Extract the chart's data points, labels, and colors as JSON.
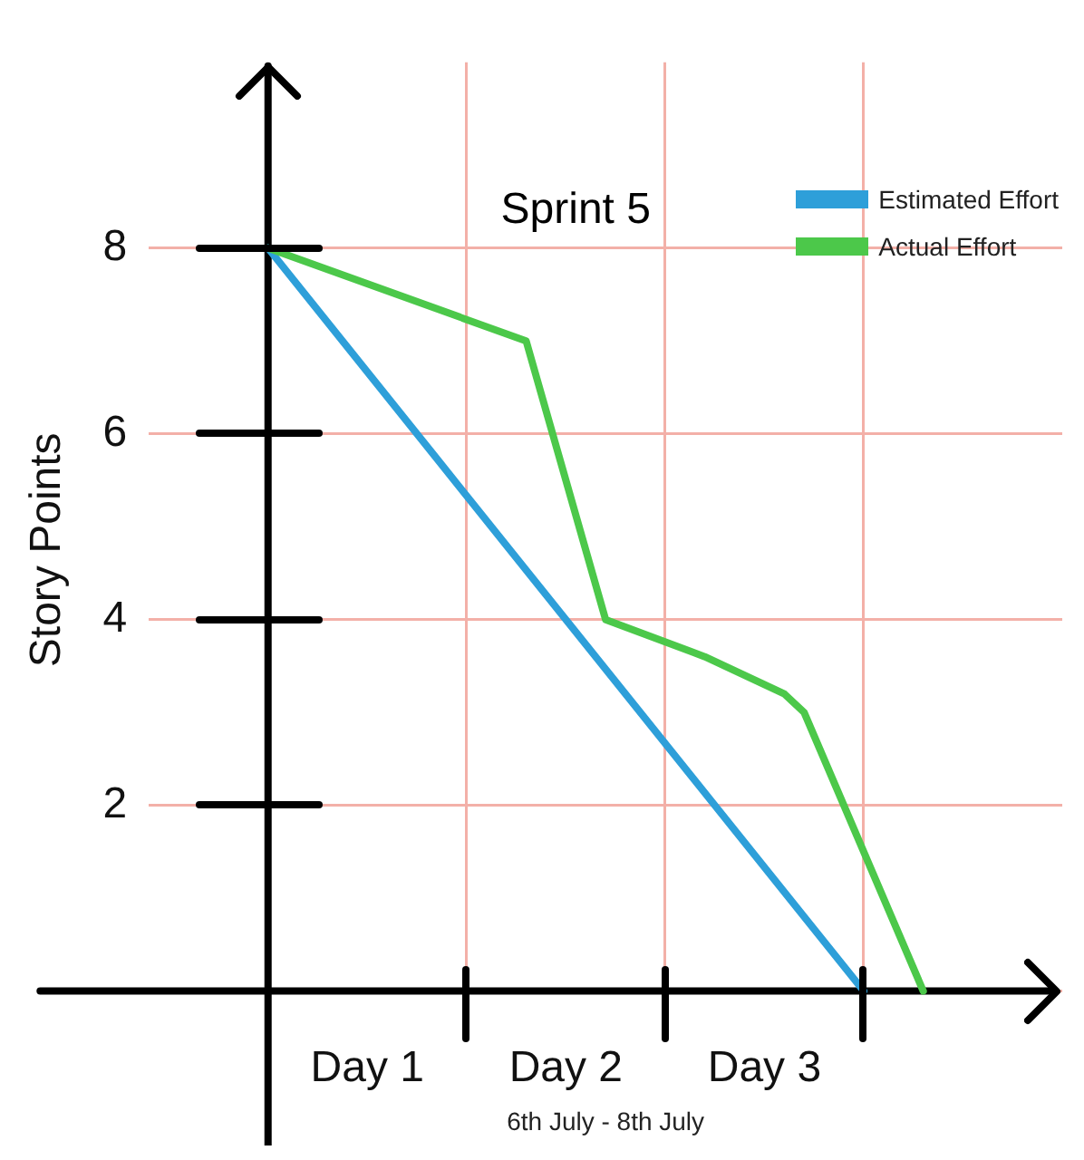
{
  "chart_data": {
    "type": "line",
    "title": "Sprint 5",
    "xlabel": "6th July - 8th July",
    "ylabel": "Story Points",
    "categories": [
      null,
      null,
      null,
      null,
      null,
      "Day 1",
      null,
      null,
      null,
      null,
      null,
      null,
      null,
      null,
      null,
      "Day 2",
      null,
      null,
      null,
      null,
      null,
      null,
      null,
      null,
      null,
      "Day 3",
      null,
      null,
      null,
      null,
      null,
      null,
      null,
      null
    ],
    "ylim": [
      -0.5,
      10
    ],
    "yticks": [
      {
        "value": 0,
        "label": null
      },
      2,
      4,
      6,
      8
    ],
    "grid": true,
    "legend": "top right",
    "marker": "none",
    "line_style": "solid",
    "series": [
      {
        "name": "Estimated Effort",
        "color": "#2e9fd9",
        "values": [
          8,
          null,
          null,
          null,
          null,
          null,
          null,
          null,
          null,
          null,
          null,
          null,
          null,
          null,
          null,
          null,
          null,
          null,
          null,
          null,
          null,
          null,
          null,
          null,
          null,
          null,
          null,
          null,
          null,
          null,
          0,
          null,
          null,
          null
        ]
      },
      {
        "name": "Actual Effort",
        "color": "#4cc84a",
        "values": [
          8,
          null,
          null,
          null,
          null,
          null,
          null,
          null,
          null,
          null,
          null,
          null,
          null,
          7,
          null,
          null,
          null,
          4,
          null,
          null,
          null,
          null,
          3.6,
          null,
          null,
          null,
          3.2,
          3,
          null,
          null,
          null,
          null,
          null,
          0
        ]
      }
    ]
  }
}
